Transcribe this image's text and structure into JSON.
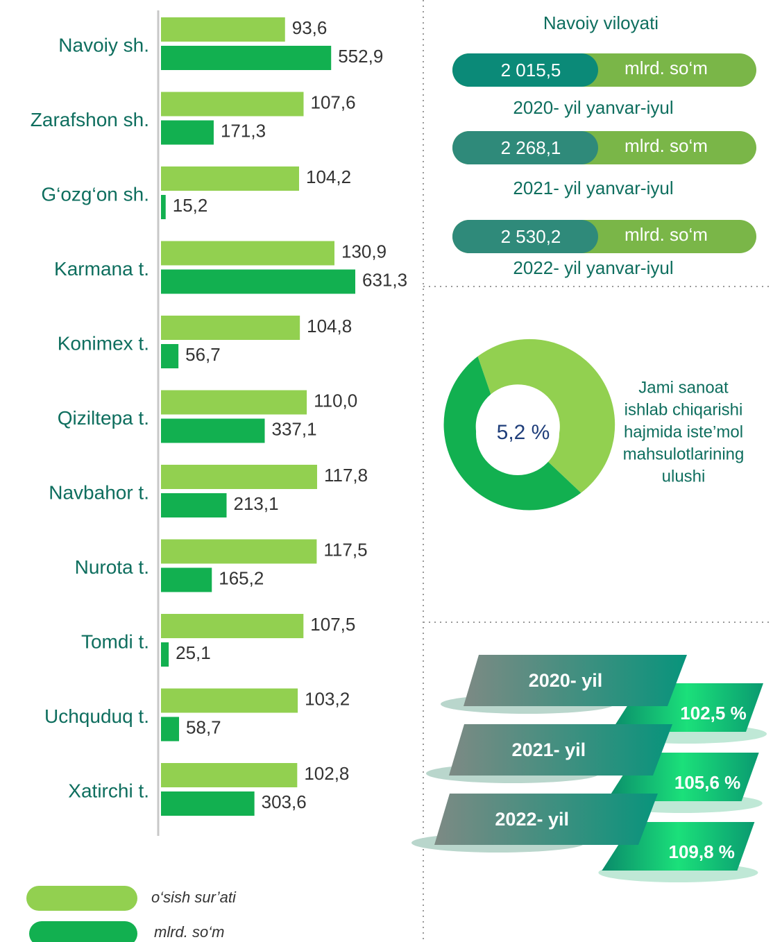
{
  "chart_data": {
    "type": "bar",
    "categories": [
      "Navoiy sh.",
      "Zarafshon sh.",
      "G‘ozg‘on sh.",
      "Karmana t.",
      "Konimex t.",
      "Qiziltepa t.",
      "Navbahor t.",
      "Nurota t.",
      "Tomdi t.",
      "Uchquduq t.",
      "Xatirchi t."
    ],
    "series": [
      {
        "name": "o‘sish sur’ati",
        "color": "#92d050",
        "values": [
          93.6,
          107.6,
          104.2,
          130.9,
          104.8,
          110.0,
          117.8,
          117.5,
          107.5,
          103.2,
          102.8
        ],
        "value_labels": [
          "93,6",
          "107,6",
          "104,2",
          "130,9",
          "104,8",
          "110,0",
          "117,8",
          "117,5",
          "107,5",
          "103,2",
          "102,8"
        ]
      },
      {
        "name": "mlrd. so‘m",
        "color": "#12b050",
        "values": [
          552.9,
          171.3,
          15.2,
          631.3,
          56.7,
          337.1,
          213.1,
          165.2,
          25.1,
          58.7,
          303.6
        ],
        "value_labels": [
          "552,9",
          "171,3",
          "15,2",
          "631,3",
          "56,7",
          "337,1",
          "213,1",
          "165,2",
          "25,1",
          "58,7",
          "303,6"
        ]
      }
    ]
  },
  "region": {
    "title": "Navoiy viloyati",
    "totals": [
      {
        "value": "2 015,5",
        "unit": "mlrd. so‘m",
        "period": "2020- yil yanvar-iyul"
      },
      {
        "value": "2 268,1",
        "unit": "mlrd. so‘m",
        "period": "2021- yil yanvar-iyul"
      },
      {
        "value": "2 530,2",
        "unit": "mlrd. so‘m",
        "period": "2022- yil yanvar-iyul"
      }
    ]
  },
  "share": {
    "value": "5,2 %",
    "caption": [
      "Jami sanoat",
      "ishlab chiqarishi",
      "hajmida iste’mol",
      "mahsulotlarining",
      "ulushi"
    ]
  },
  "growth": [
    {
      "year": "2020- yil",
      "value": "102,5 %"
    },
    {
      "year": "2021- yil",
      "value": "105,6 %"
    },
    {
      "year": "2022- yil",
      "value": "109,8 %"
    }
  ]
}
